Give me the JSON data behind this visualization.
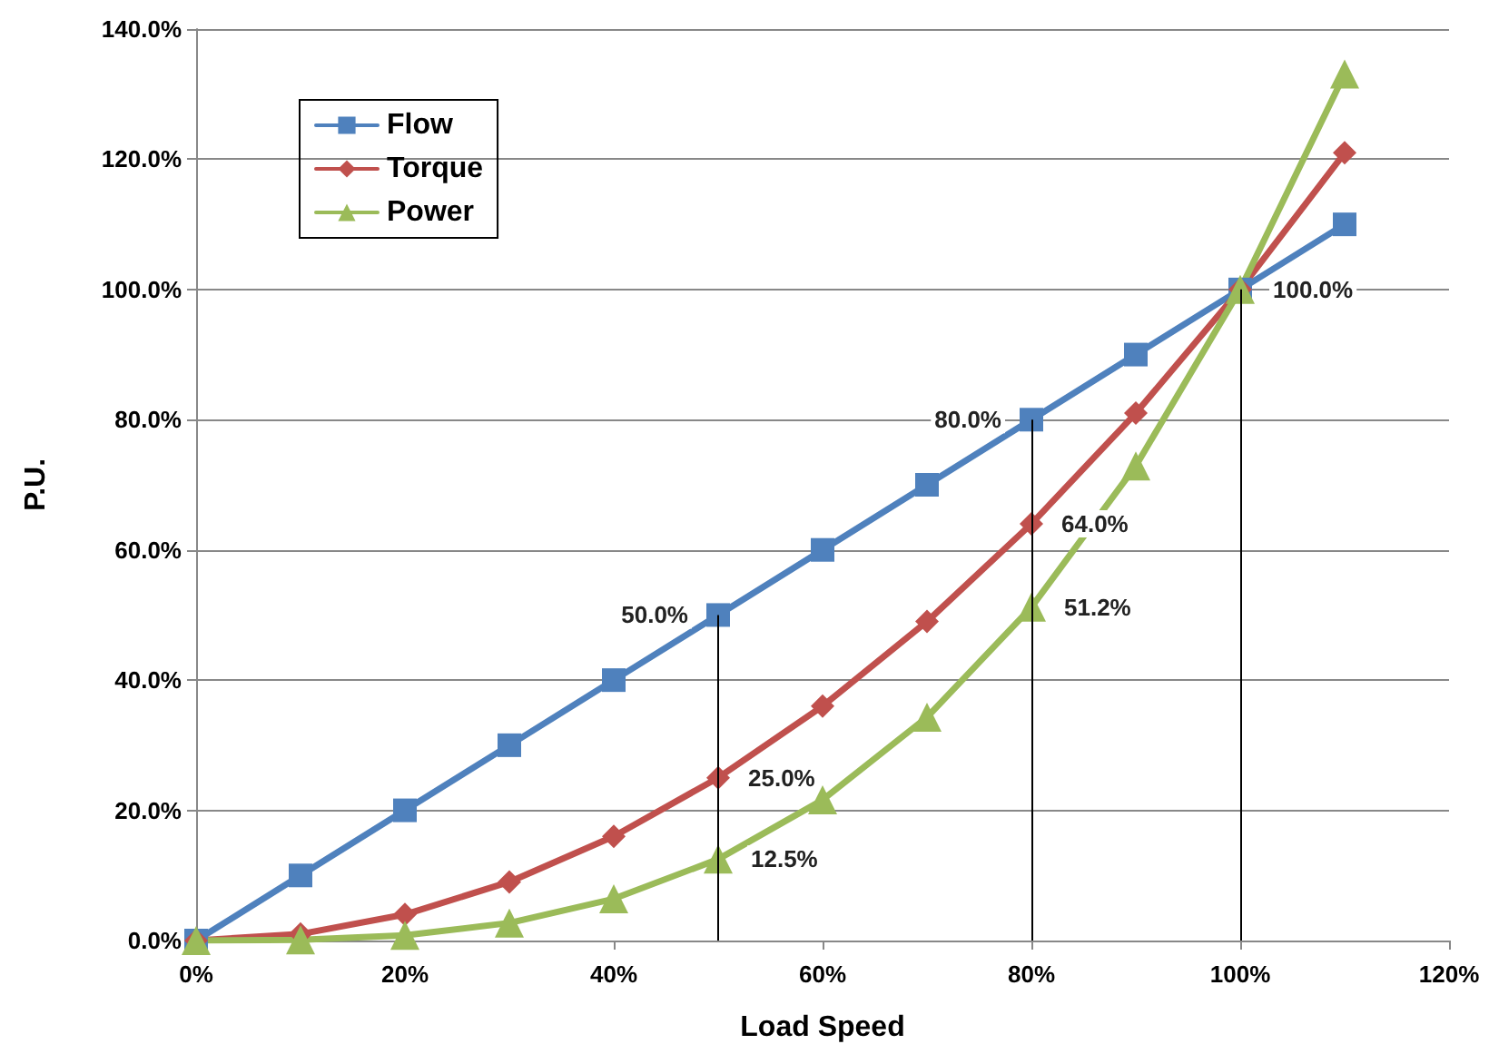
{
  "chart_data": {
    "type": "line",
    "xlabel": "Load Speed",
    "ylabel": "P.U.",
    "x": [
      0,
      10,
      20,
      30,
      40,
      50,
      60,
      70,
      80,
      90,
      100,
      110
    ],
    "series": [
      {
        "name": "Flow",
        "color": "#4f81bd",
        "marker": "square",
        "values": [
          0,
          10,
          20,
          30,
          40,
          50,
          60,
          70,
          80,
          90,
          100,
          110
        ],
        "value_labels": [
          null,
          null,
          null,
          null,
          null,
          "50.0%",
          null,
          null,
          "80.0%",
          null,
          null,
          null
        ]
      },
      {
        "name": "Torque",
        "color": "#c0504d",
        "marker": "diamond",
        "values": [
          0,
          1,
          4,
          9,
          16,
          25,
          36,
          49,
          64,
          81,
          100,
          121
        ],
        "value_labels": [
          null,
          null,
          null,
          null,
          null,
          "25.0%",
          null,
          null,
          "64.0%",
          null,
          null,
          null
        ]
      },
      {
        "name": "Power",
        "color": "#9bbb59",
        "marker": "triangle",
        "values": [
          0,
          0.1,
          0.8,
          2.7,
          6.4,
          12.5,
          21.6,
          34.3,
          51.2,
          72.9,
          100,
          133.1
        ],
        "value_labels": [
          null,
          null,
          null,
          null,
          null,
          "12.5%",
          null,
          null,
          "51.2%",
          null,
          "100.0%",
          null
        ]
      }
    ],
    "xlim": [
      0,
      120
    ],
    "xticks": [
      {
        "value": 0,
        "label": "0%"
      },
      {
        "value": 20,
        "label": "20%"
      },
      {
        "value": 40,
        "label": "40%"
      },
      {
        "value": 60,
        "label": "60%"
      },
      {
        "value": 80,
        "label": "80%"
      },
      {
        "value": 100,
        "label": "100%"
      },
      {
        "value": 120,
        "label": "120%"
      }
    ],
    "ylim": [
      0,
      140
    ],
    "yticks": [
      {
        "value": 0,
        "label": "0.0%"
      },
      {
        "value": 20,
        "label": "20.0%"
      },
      {
        "value": 40,
        "label": "40.0%"
      },
      {
        "value": 60,
        "label": "60.0%"
      },
      {
        "value": 80,
        "label": "80.0%"
      },
      {
        "value": 100,
        "label": "100.0%"
      },
      {
        "value": 120,
        "label": "120.0%"
      },
      {
        "value": 140,
        "label": "140.0%"
      }
    ],
    "ref_lines": [
      {
        "axis": "x",
        "value": 50,
        "color": "#000000"
      },
      {
        "axis": "x",
        "value": 80,
        "color": "#000000"
      },
      {
        "axis": "x",
        "value": 100,
        "color": "#000000"
      }
    ],
    "grid": "y",
    "legend": "top left",
    "line_style": "solid"
  }
}
